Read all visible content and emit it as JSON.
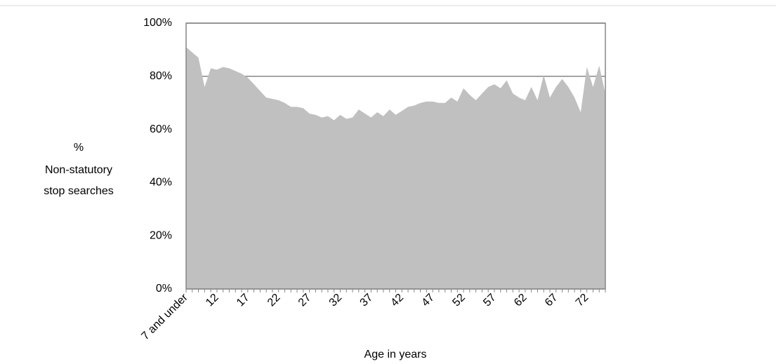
{
  "chart_data": {
    "type": "area",
    "y_label": [
      "%",
      "Non-statutory",
      "stop searches"
    ],
    "x_label": "Age in years",
    "categories": [
      "7 and under",
      null,
      null,
      null,
      null,
      "12",
      null,
      null,
      null,
      null,
      "17",
      null,
      null,
      null,
      null,
      "22",
      null,
      null,
      null,
      null,
      "27",
      null,
      null,
      null,
      null,
      "32",
      null,
      null,
      null,
      null,
      "37",
      null,
      null,
      null,
      null,
      "42",
      null,
      null,
      null,
      null,
      "47",
      null,
      null,
      null,
      null,
      "52",
      null,
      null,
      null,
      null,
      "57",
      null,
      null,
      null,
      null,
      "62",
      null,
      null,
      null,
      null,
      "67",
      null,
      null,
      null,
      null,
      "72",
      null,
      null,
      null
    ],
    "values": [
      91,
      89,
      87,
      76,
      83,
      82.5,
      83.5,
      83,
      82,
      81,
      79.5,
      77,
      74.5,
      72,
      71.5,
      71,
      70,
      68.5,
      68.5,
      68,
      66,
      65.5,
      64.5,
      65,
      63.5,
      65.5,
      64,
      64.5,
      67.5,
      66,
      64.5,
      66.5,
      65,
      67.5,
      65.5,
      67,
      68.5,
      69,
      70,
      70.5,
      70.5,
      70,
      70,
      72,
      70.5,
      75.5,
      73,
      71,
      73.5,
      76,
      77,
      75.5,
      78.5,
      73.5,
      72,
      71,
      76,
      71,
      80.5,
      72,
      76,
      79,
      76,
      72,
      66.5,
      83.5,
      76,
      84,
      73.5
    ],
    "color": "#c0c0c0",
    "ylim": [
      0,
      100
    ],
    "yticks": [
      {
        "value": 0,
        "label": "0%"
      },
      {
        "value": 20,
        "label": "20%"
      },
      {
        "value": 40,
        "label": "40%"
      },
      {
        "value": 60,
        "label": "60%"
      },
      {
        "value": 80,
        "label": "80%"
      },
      {
        "value": 100,
        "label": "100%"
      }
    ],
    "grid": true
  }
}
